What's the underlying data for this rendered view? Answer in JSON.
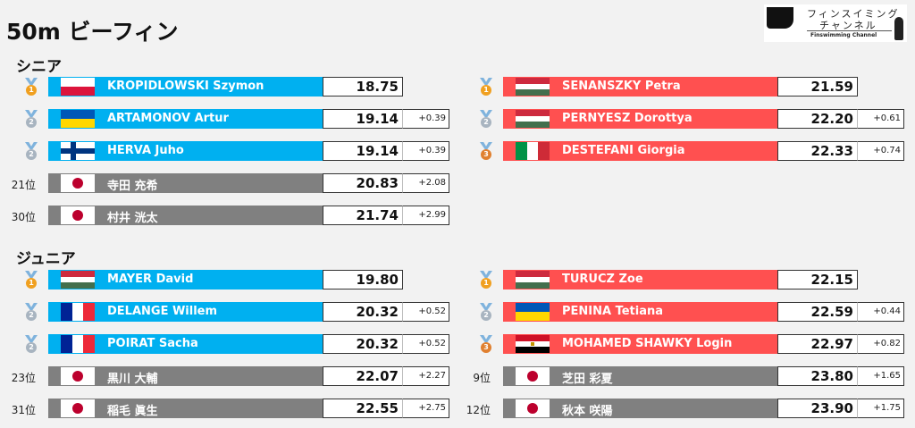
{
  "title": "50m ビーフィン",
  "logo": {
    "line1": "フィンスイミング",
    "line2": "チャンネル",
    "line3": "Finswimming Channel"
  },
  "colors": {
    "men": "#00b0f0",
    "women": "#ff5050",
    "other": "#808080",
    "gold": "#f0a020",
    "silver": "#a8b4c0",
    "bronze": "#e08030"
  },
  "sections": [
    {
      "label": "シニア",
      "men": [
        {
          "rank": "",
          "medal": "1",
          "flag": "poland",
          "name": "KROPIDLOWSKI Szymon",
          "time": "18.75",
          "diff": ""
        },
        {
          "rank": "",
          "medal": "2",
          "flag": "ukraine",
          "name": "ARTAMONOV Artur",
          "time": "19.14",
          "diff": "+0.39"
        },
        {
          "rank": "",
          "medal": "2",
          "flag": "finland",
          "name": "HERVA Juho",
          "time": "19.14",
          "diff": "+0.39"
        },
        {
          "rank": "21位",
          "medal": "",
          "flag": "japan",
          "name": "寺田 充希",
          "time": "20.83",
          "diff": "+2.08"
        },
        {
          "rank": "30位",
          "medal": "",
          "flag": "japan",
          "name": "村井 洸太",
          "time": "21.74",
          "diff": "+2.99"
        }
      ],
      "women": [
        {
          "rank": "",
          "medal": "1",
          "flag": "hungary",
          "name": "SENANSZKY Petra",
          "time": "21.59",
          "diff": ""
        },
        {
          "rank": "",
          "medal": "2",
          "flag": "hungary",
          "name": "PERNYESZ Dorottya",
          "time": "22.20",
          "diff": "+0.61"
        },
        {
          "rank": "",
          "medal": "3",
          "flag": "italy",
          "name": "DESTEFANI Giorgia",
          "time": "22.33",
          "diff": "+0.74"
        }
      ]
    },
    {
      "label": "ジュニア",
      "men": [
        {
          "rank": "",
          "medal": "1",
          "flag": "hungary",
          "name": "MAYER David",
          "time": "19.80",
          "diff": ""
        },
        {
          "rank": "",
          "medal": "2",
          "flag": "france",
          "name": "DELANGE Willem",
          "time": "20.32",
          "diff": "+0.52"
        },
        {
          "rank": "",
          "medal": "2",
          "flag": "france",
          "name": "POIRAT Sacha",
          "time": "20.32",
          "diff": "+0.52"
        },
        {
          "rank": "23位",
          "medal": "",
          "flag": "japan",
          "name": "黒川 大輔",
          "time": "22.07",
          "diff": "+2.27"
        },
        {
          "rank": "31位",
          "medal": "",
          "flag": "japan",
          "name": "稲毛 眞生",
          "time": "22.55",
          "diff": "+2.75"
        }
      ],
      "women": [
        {
          "rank": "",
          "medal": "1",
          "flag": "hungary",
          "name": "TURUCZ Zoe",
          "time": "22.15",
          "diff": ""
        },
        {
          "rank": "",
          "medal": "2",
          "flag": "ukraine",
          "name": "PENINA Tetiana",
          "time": "22.59",
          "diff": "+0.44"
        },
        {
          "rank": "",
          "medal": "3",
          "flag": "egypt",
          "name": "MOHAMED SHAWKY Login",
          "time": "22.97",
          "diff": "+0.82"
        },
        {
          "rank": "9位",
          "medal": "",
          "flag": "japan",
          "name": "芝田 彩夏",
          "time": "23.80",
          "diff": "+1.65"
        },
        {
          "rank": "12位",
          "medal": "",
          "flag": "japan",
          "name": "秋本 咲陽",
          "time": "23.90",
          "diff": "+1.75"
        }
      ]
    }
  ]
}
